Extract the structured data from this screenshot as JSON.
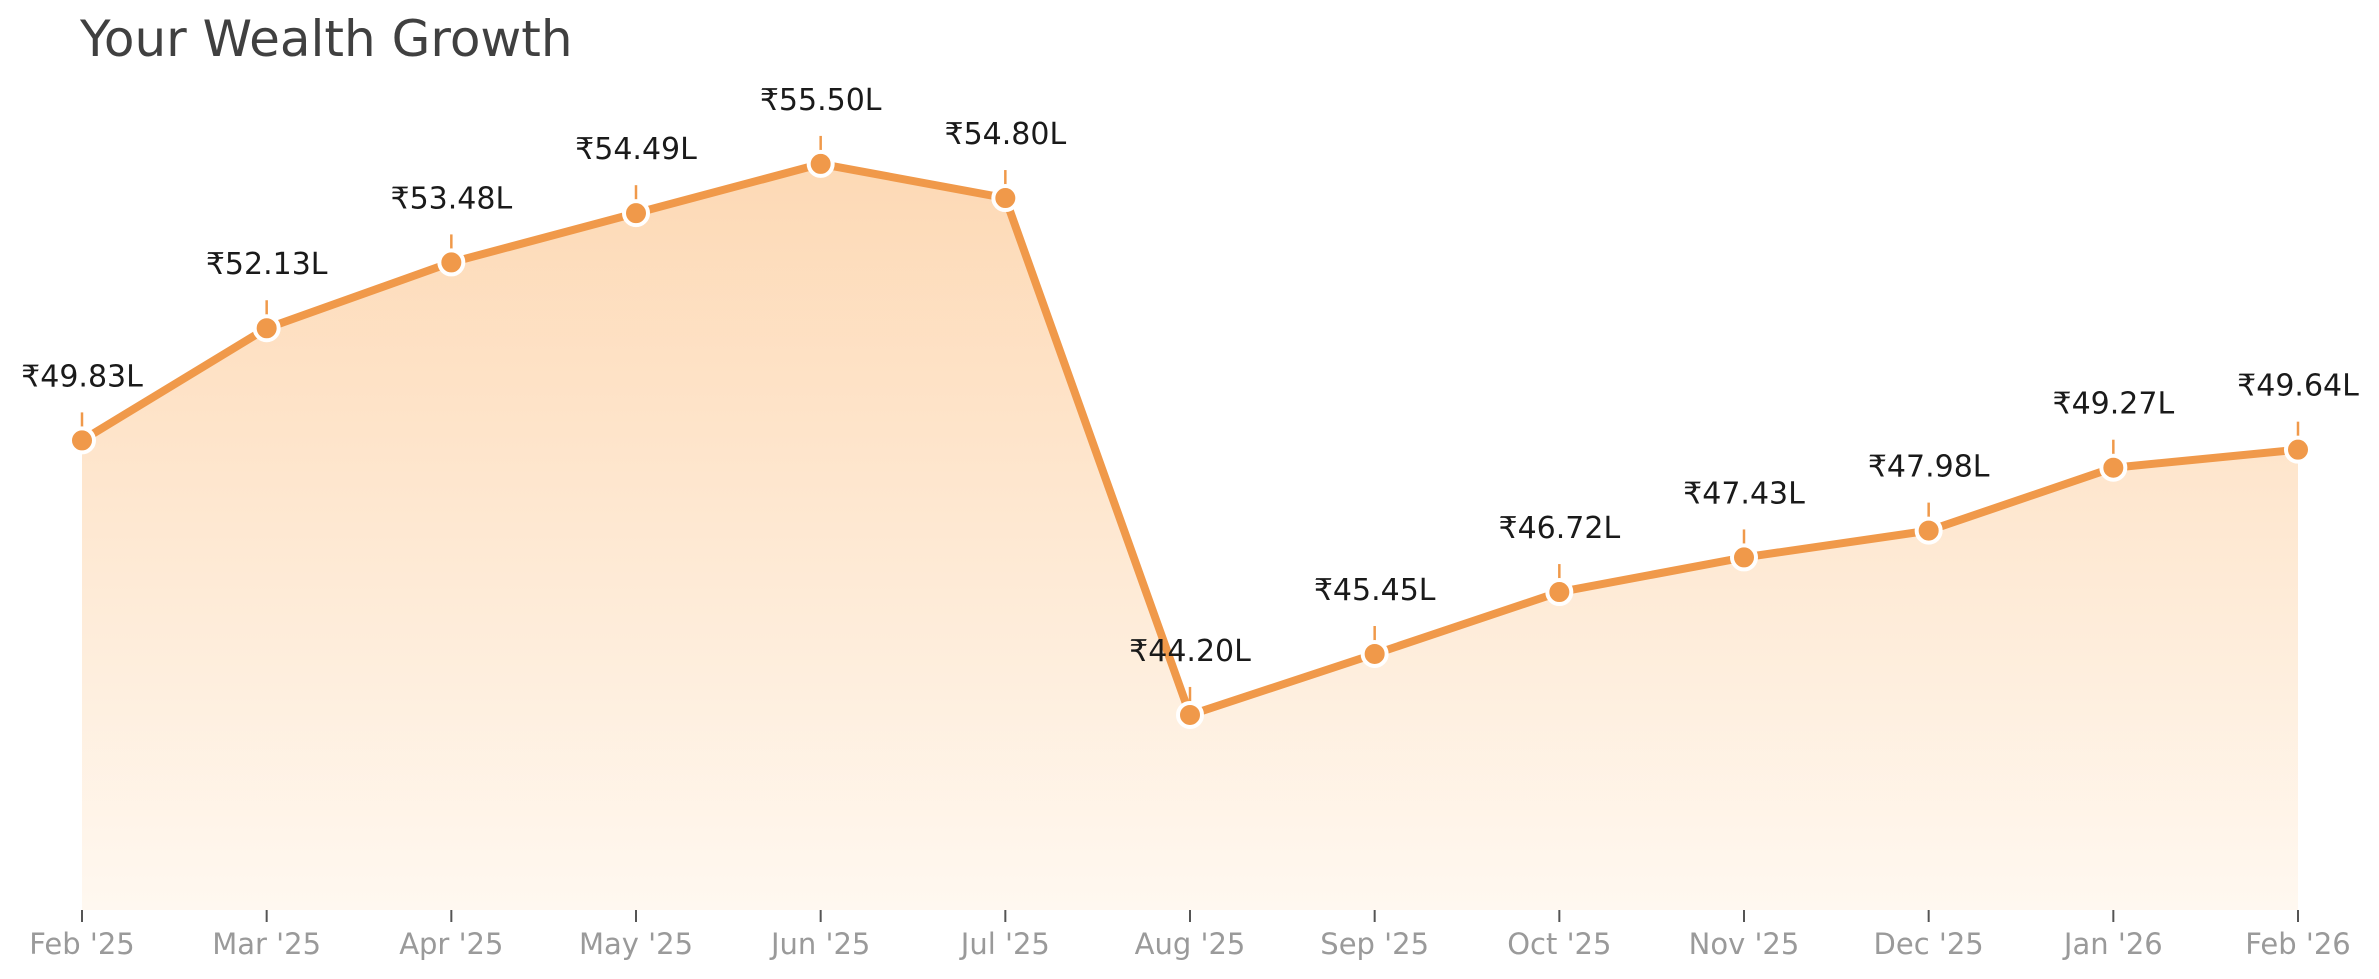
{
  "chart_data": {
    "type": "area",
    "title": "Your Wealth Growth",
    "xlabel": "",
    "ylabel": "",
    "categories": [
      "Feb '25",
      "Mar '25",
      "Apr '25",
      "May '25",
      "Jun '25",
      "Jul '25",
      "Aug '25",
      "Sep '25",
      "Oct '25",
      "Nov '25",
      "Dec '25",
      "Jan '26",
      "Feb '26"
    ],
    "series": [
      {
        "values": [
          49.83,
          52.13,
          53.48,
          54.49,
          55.5,
          54.8,
          44.2,
          45.45,
          46.72,
          47.43,
          47.98,
          49.27,
          49.64
        ],
        "labels": [
          "₹49.83L",
          "₹52.13L",
          "₹53.48L",
          "₹54.49L",
          "₹55.50L",
          "₹54.80L",
          "₹44.20L",
          "₹45.45L",
          "₹46.72L",
          "₹47.43L",
          "₹47.98L",
          "₹49.27L",
          "₹49.64L"
        ]
      }
    ],
    "ylim": [
      40.2,
      58.0
    ],
    "unit": "₹ Lakh",
    "grid": false,
    "legend": "none",
    "colors": {
      "line": "#F0994A",
      "marker": "#F0994A",
      "marker_edge": "#ffffff",
      "fill_top": "#FDD9B5",
      "fill_bottom": "#FFF8F0",
      "tick_label": "#9a9a9a",
      "value_label": "#1a1a1a"
    }
  }
}
